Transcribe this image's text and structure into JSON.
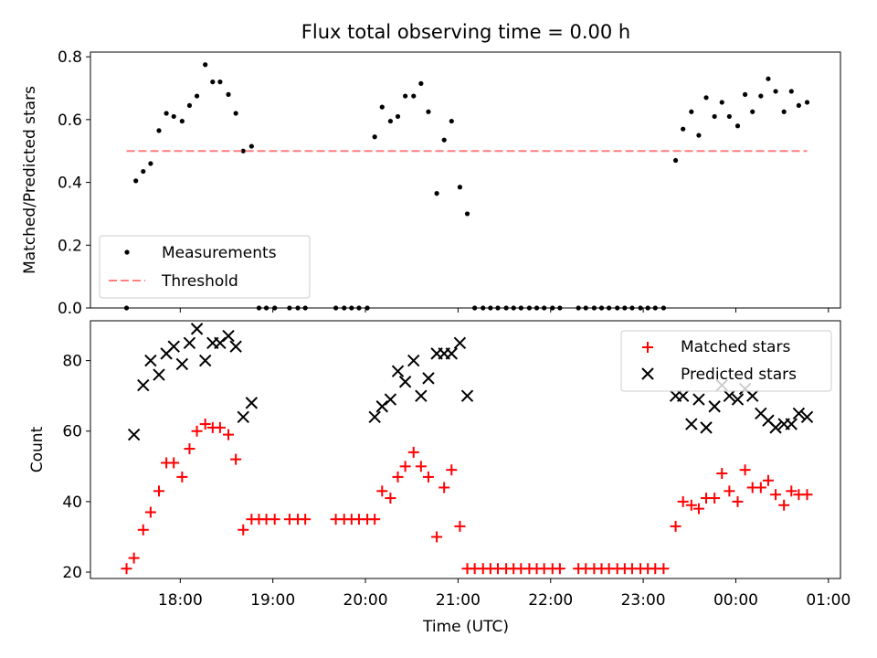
{
  "title": "Flux total observing time = 0.00 h",
  "colors": {
    "measurement": "#000000",
    "threshold": "#ff7f7f",
    "matched": "#ff0000",
    "predicted": "#000000"
  },
  "x_ticks": [
    "18:00",
    "19:00",
    "20:00",
    "21:00",
    "22:00",
    "23:00",
    "00:00",
    "01:00"
  ],
  "chart_data": [
    {
      "type": "scatter",
      "panel": "top",
      "title": "Flux total observing time = 0.00 h",
      "xlabel": "",
      "ylabel": "Matched/Predicted stars",
      "x_unit": "hours (UTC, 24 = 00:00 next day)",
      "xlim": [
        17.03,
        25.13
      ],
      "ylim": [
        0,
        0.815
      ],
      "yticks": [
        "0.0",
        "0.2",
        "0.4",
        "0.6",
        "0.8"
      ],
      "grid": false,
      "legend_position": "lower-left",
      "series": [
        {
          "name": "Measurements",
          "marker": "dot",
          "x": [
            17.42,
            17.52,
            17.6,
            17.68,
            17.77,
            17.85,
            17.93,
            18.02,
            18.1,
            18.18,
            18.27,
            18.35,
            18.43,
            18.52,
            18.6,
            18.68,
            18.77,
            18.85,
            18.93,
            19.02,
            19.18,
            19.27,
            19.35,
            19.68,
            19.77,
            19.85,
            19.93,
            20.02,
            20.1,
            20.18,
            20.27,
            20.35,
            20.43,
            20.52,
            20.6,
            20.68,
            20.77,
            20.85,
            20.93,
            21.02,
            21.1,
            21.18,
            21.27,
            21.35,
            21.43,
            21.52,
            21.6,
            21.68,
            21.77,
            21.85,
            21.93,
            22.02,
            22.1,
            22.3,
            22.38,
            22.47,
            22.55,
            22.63,
            22.72,
            22.8,
            22.88,
            22.97,
            23.05,
            23.13,
            23.22,
            23.35,
            23.43,
            23.52,
            23.6,
            23.68,
            23.77,
            23.85,
            23.93,
            24.02,
            24.1,
            24.18,
            24.27,
            24.35,
            24.43,
            24.52,
            24.6,
            24.68,
            24.77
          ],
          "y": [
            0.0,
            0.405,
            0.435,
            0.46,
            0.565,
            0.62,
            0.61,
            0.595,
            0.645,
            0.675,
            0.775,
            0.72,
            0.72,
            0.68,
            0.62,
            0.5,
            0.515,
            0.0,
            0.0,
            0.0,
            0.0,
            0.0,
            0.0,
            0.0,
            0.0,
            0.0,
            0.0,
            0.0,
            0.545,
            0.64,
            0.595,
            0.61,
            0.675,
            0.675,
            0.715,
            0.625,
            0.365,
            0.535,
            0.595,
            0.385,
            0.3,
            0.0,
            0.0,
            0.0,
            0.0,
            0.0,
            0.0,
            0.0,
            0.0,
            0.0,
            0.0,
            0.0,
            0.0,
            0.0,
            0.0,
            0.0,
            0.0,
            0.0,
            0.0,
            0.0,
            0.0,
            0.0,
            0.0,
            0.0,
            0.0,
            0.47,
            0.57,
            0.625,
            0.55,
            0.67,
            0.61,
            0.655,
            0.61,
            0.58,
            0.68,
            0.625,
            0.675,
            0.73,
            0.69,
            0.625,
            0.69,
            0.645,
            0.655
          ]
        },
        {
          "name": "Threshold",
          "style": "dashed",
          "x": [
            17.42,
            24.77
          ],
          "y": [
            0.5,
            0.5
          ]
        }
      ]
    },
    {
      "type": "scatter",
      "panel": "bottom",
      "xlabel": "Time (UTC)",
      "ylabel": "Count",
      "x_unit": "hours (UTC, 24 = 00:00 next day)",
      "xlim": [
        17.03,
        25.13
      ],
      "ylim": [
        18.2,
        91.3
      ],
      "yticks": [
        "20",
        "40",
        "60",
        "80"
      ],
      "grid": false,
      "legend_position": "top-right",
      "series": [
        {
          "name": "Matched stars",
          "marker": "plus",
          "x": [
            17.42,
            17.5,
            17.6,
            17.68,
            17.77,
            17.85,
            17.93,
            18.02,
            18.1,
            18.18,
            18.27,
            18.35,
            18.43,
            18.52,
            18.6,
            18.68,
            18.77,
            18.85,
            18.93,
            19.02,
            19.18,
            19.27,
            19.35,
            19.68,
            19.77,
            19.85,
            19.93,
            20.02,
            20.1,
            20.18,
            20.27,
            20.35,
            20.43,
            20.52,
            20.6,
            20.68,
            20.77,
            20.85,
            20.93,
            21.02,
            21.1,
            21.18,
            21.27,
            21.35,
            21.43,
            21.52,
            21.6,
            21.68,
            21.77,
            21.85,
            21.93,
            22.02,
            22.1,
            22.3,
            22.38,
            22.47,
            22.55,
            22.63,
            22.72,
            22.8,
            22.88,
            22.97,
            23.05,
            23.13,
            23.22,
            23.35,
            23.43,
            23.52,
            23.6,
            23.68,
            23.77,
            23.85,
            23.93,
            24.02,
            24.1,
            24.18,
            24.27,
            24.35,
            24.43,
            24.52,
            24.6,
            24.68,
            24.77
          ],
          "y": [
            21,
            24,
            32,
            37,
            43,
            51,
            51,
            47,
            55,
            60,
            62,
            61,
            61,
            59,
            52,
            32,
            35,
            35,
            35,
            35,
            35,
            35,
            35,
            35,
            35,
            35,
            35,
            35,
            35,
            43,
            41,
            47,
            50,
            54,
            50,
            47,
            30,
            44,
            49,
            33,
            21,
            21,
            21,
            21,
            21,
            21,
            21,
            21,
            21,
            21,
            21,
            21,
            21,
            21,
            21,
            21,
            21,
            21,
            21,
            21,
            21,
            21,
            21,
            21,
            21,
            33,
            40,
            39,
            38,
            41,
            41,
            48,
            43,
            40,
            49,
            44,
            44,
            46,
            42,
            39,
            43,
            42,
            42
          ]
        },
        {
          "name": "Predicted stars",
          "marker": "x",
          "x": [
            17.5,
            17.6,
            17.68,
            17.77,
            17.85,
            17.93,
            18.02,
            18.1,
            18.18,
            18.27,
            18.35,
            18.43,
            18.52,
            18.6,
            18.68,
            18.77,
            20.1,
            20.18,
            20.27,
            20.35,
            20.43,
            20.52,
            20.6,
            20.68,
            20.77,
            20.85,
            20.93,
            21.02,
            21.1,
            23.35,
            23.43,
            23.52,
            23.6,
            23.68,
            23.77,
            23.85,
            23.93,
            24.02,
            24.1,
            24.18,
            24.27,
            24.35,
            24.43,
            24.52,
            24.6,
            24.68,
            24.77
          ],
          "y": [
            59,
            73,
            80,
            76,
            82,
            84,
            79,
            85,
            89,
            80,
            85,
            85,
            87,
            84,
            64,
            68,
            64,
            67,
            69,
            77,
            74,
            80,
            70,
            75,
            82,
            82,
            82,
            85,
            70,
            70,
            70,
            62,
            69,
            61,
            67,
            73,
            70,
            69,
            72,
            70,
            65,
            63,
            61,
            62,
            62,
            65,
            64
          ]
        }
      ]
    }
  ]
}
